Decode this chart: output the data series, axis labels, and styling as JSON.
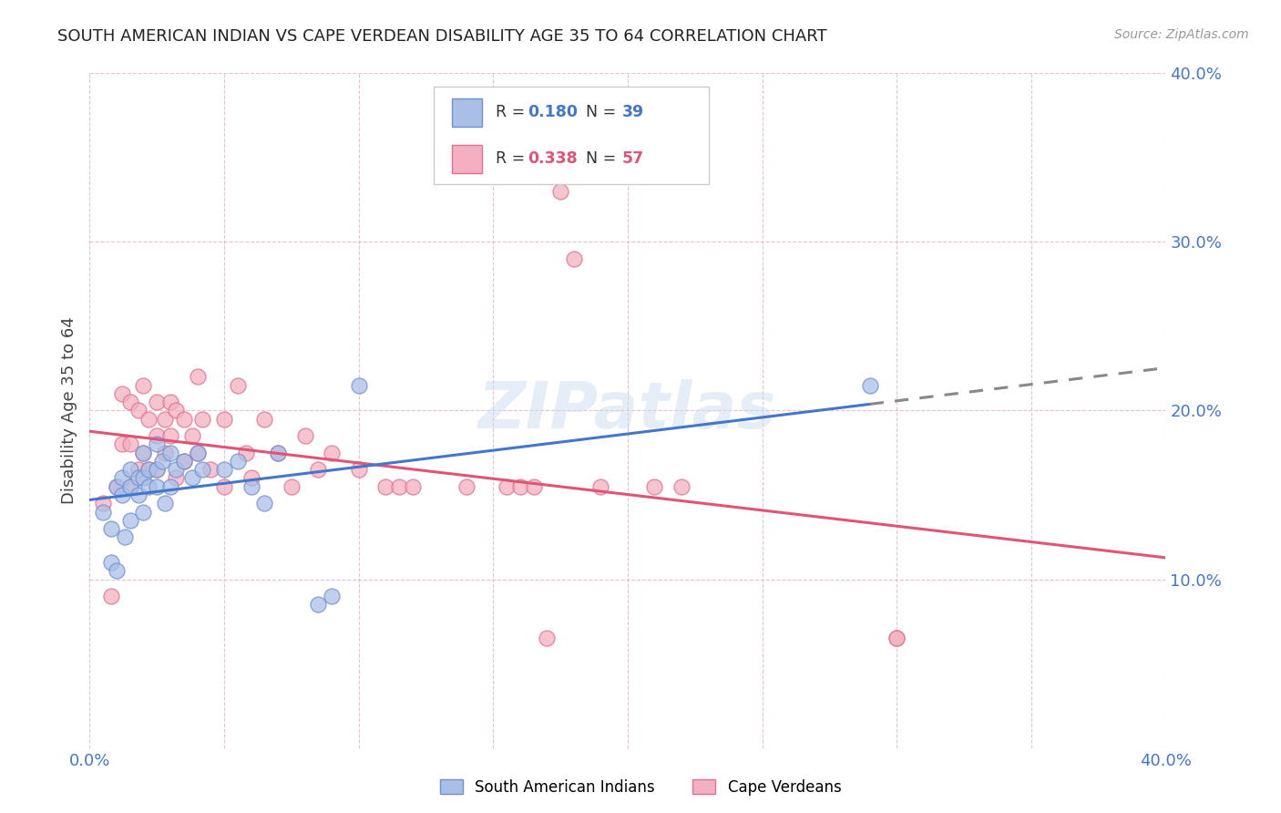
{
  "title": "SOUTH AMERICAN INDIAN VS CAPE VERDEAN DISABILITY AGE 35 TO 64 CORRELATION CHART",
  "source": "Source: ZipAtlas.com",
  "ylabel": "Disability Age 35 to 64",
  "xlim": [
    0.0,
    0.4
  ],
  "ylim": [
    0.0,
    0.4
  ],
  "r_blue": 0.18,
  "n_blue": 39,
  "r_pink": 0.338,
  "n_pink": 57,
  "legend_labels": [
    "South American Indians",
    "Cape Verdeans"
  ],
  "blue_fill": "#AABFE8",
  "pink_fill": "#F4B0C0",
  "blue_edge": "#7090CC",
  "pink_edge": "#E07090",
  "blue_line": "#4477CC",
  "pink_line": "#E05575",
  "grid_color": "#E8B0C0",
  "watermark": "ZIPatlas",
  "blue_x": [
    0.005,
    0.008,
    0.008,
    0.01,
    0.01,
    0.012,
    0.012,
    0.013,
    0.015,
    0.015,
    0.015,
    0.018,
    0.018,
    0.02,
    0.02,
    0.02,
    0.022,
    0.022,
    0.025,
    0.025,
    0.025,
    0.027,
    0.028,
    0.03,
    0.03,
    0.032,
    0.035,
    0.038,
    0.04,
    0.042,
    0.05,
    0.055,
    0.06,
    0.065,
    0.07,
    0.085,
    0.09,
    0.1,
    0.29
  ],
  "blue_y": [
    0.14,
    0.13,
    0.11,
    0.155,
    0.105,
    0.16,
    0.15,
    0.125,
    0.165,
    0.155,
    0.135,
    0.16,
    0.15,
    0.175,
    0.16,
    0.14,
    0.165,
    0.155,
    0.18,
    0.165,
    0.155,
    0.17,
    0.145,
    0.175,
    0.155,
    0.165,
    0.17,
    0.16,
    0.175,
    0.165,
    0.165,
    0.17,
    0.155,
    0.145,
    0.175,
    0.085,
    0.09,
    0.215,
    0.215
  ],
  "pink_x": [
    0.005,
    0.008,
    0.01,
    0.012,
    0.012,
    0.015,
    0.015,
    0.015,
    0.018,
    0.018,
    0.02,
    0.02,
    0.022,
    0.022,
    0.025,
    0.025,
    0.025,
    0.028,
    0.028,
    0.03,
    0.03,
    0.032,
    0.032,
    0.035,
    0.035,
    0.038,
    0.04,
    0.04,
    0.042,
    0.045,
    0.05,
    0.05,
    0.055,
    0.058,
    0.06,
    0.065,
    0.07,
    0.075,
    0.08,
    0.085,
    0.09,
    0.1,
    0.11,
    0.115,
    0.12,
    0.14,
    0.155,
    0.16,
    0.165,
    0.17,
    0.18,
    0.19,
    0.21,
    0.22,
    0.175,
    0.3,
    0.3
  ],
  "pink_y": [
    0.145,
    0.09,
    0.155,
    0.21,
    0.18,
    0.205,
    0.18,
    0.155,
    0.2,
    0.165,
    0.215,
    0.175,
    0.195,
    0.165,
    0.205,
    0.185,
    0.165,
    0.195,
    0.175,
    0.205,
    0.185,
    0.2,
    0.16,
    0.195,
    0.17,
    0.185,
    0.22,
    0.175,
    0.195,
    0.165,
    0.195,
    0.155,
    0.215,
    0.175,
    0.16,
    0.195,
    0.175,
    0.155,
    0.185,
    0.165,
    0.175,
    0.165,
    0.155,
    0.155,
    0.155,
    0.155,
    0.155,
    0.155,
    0.155,
    0.065,
    0.29,
    0.155,
    0.155,
    0.155,
    0.33,
    0.065,
    0.065
  ]
}
